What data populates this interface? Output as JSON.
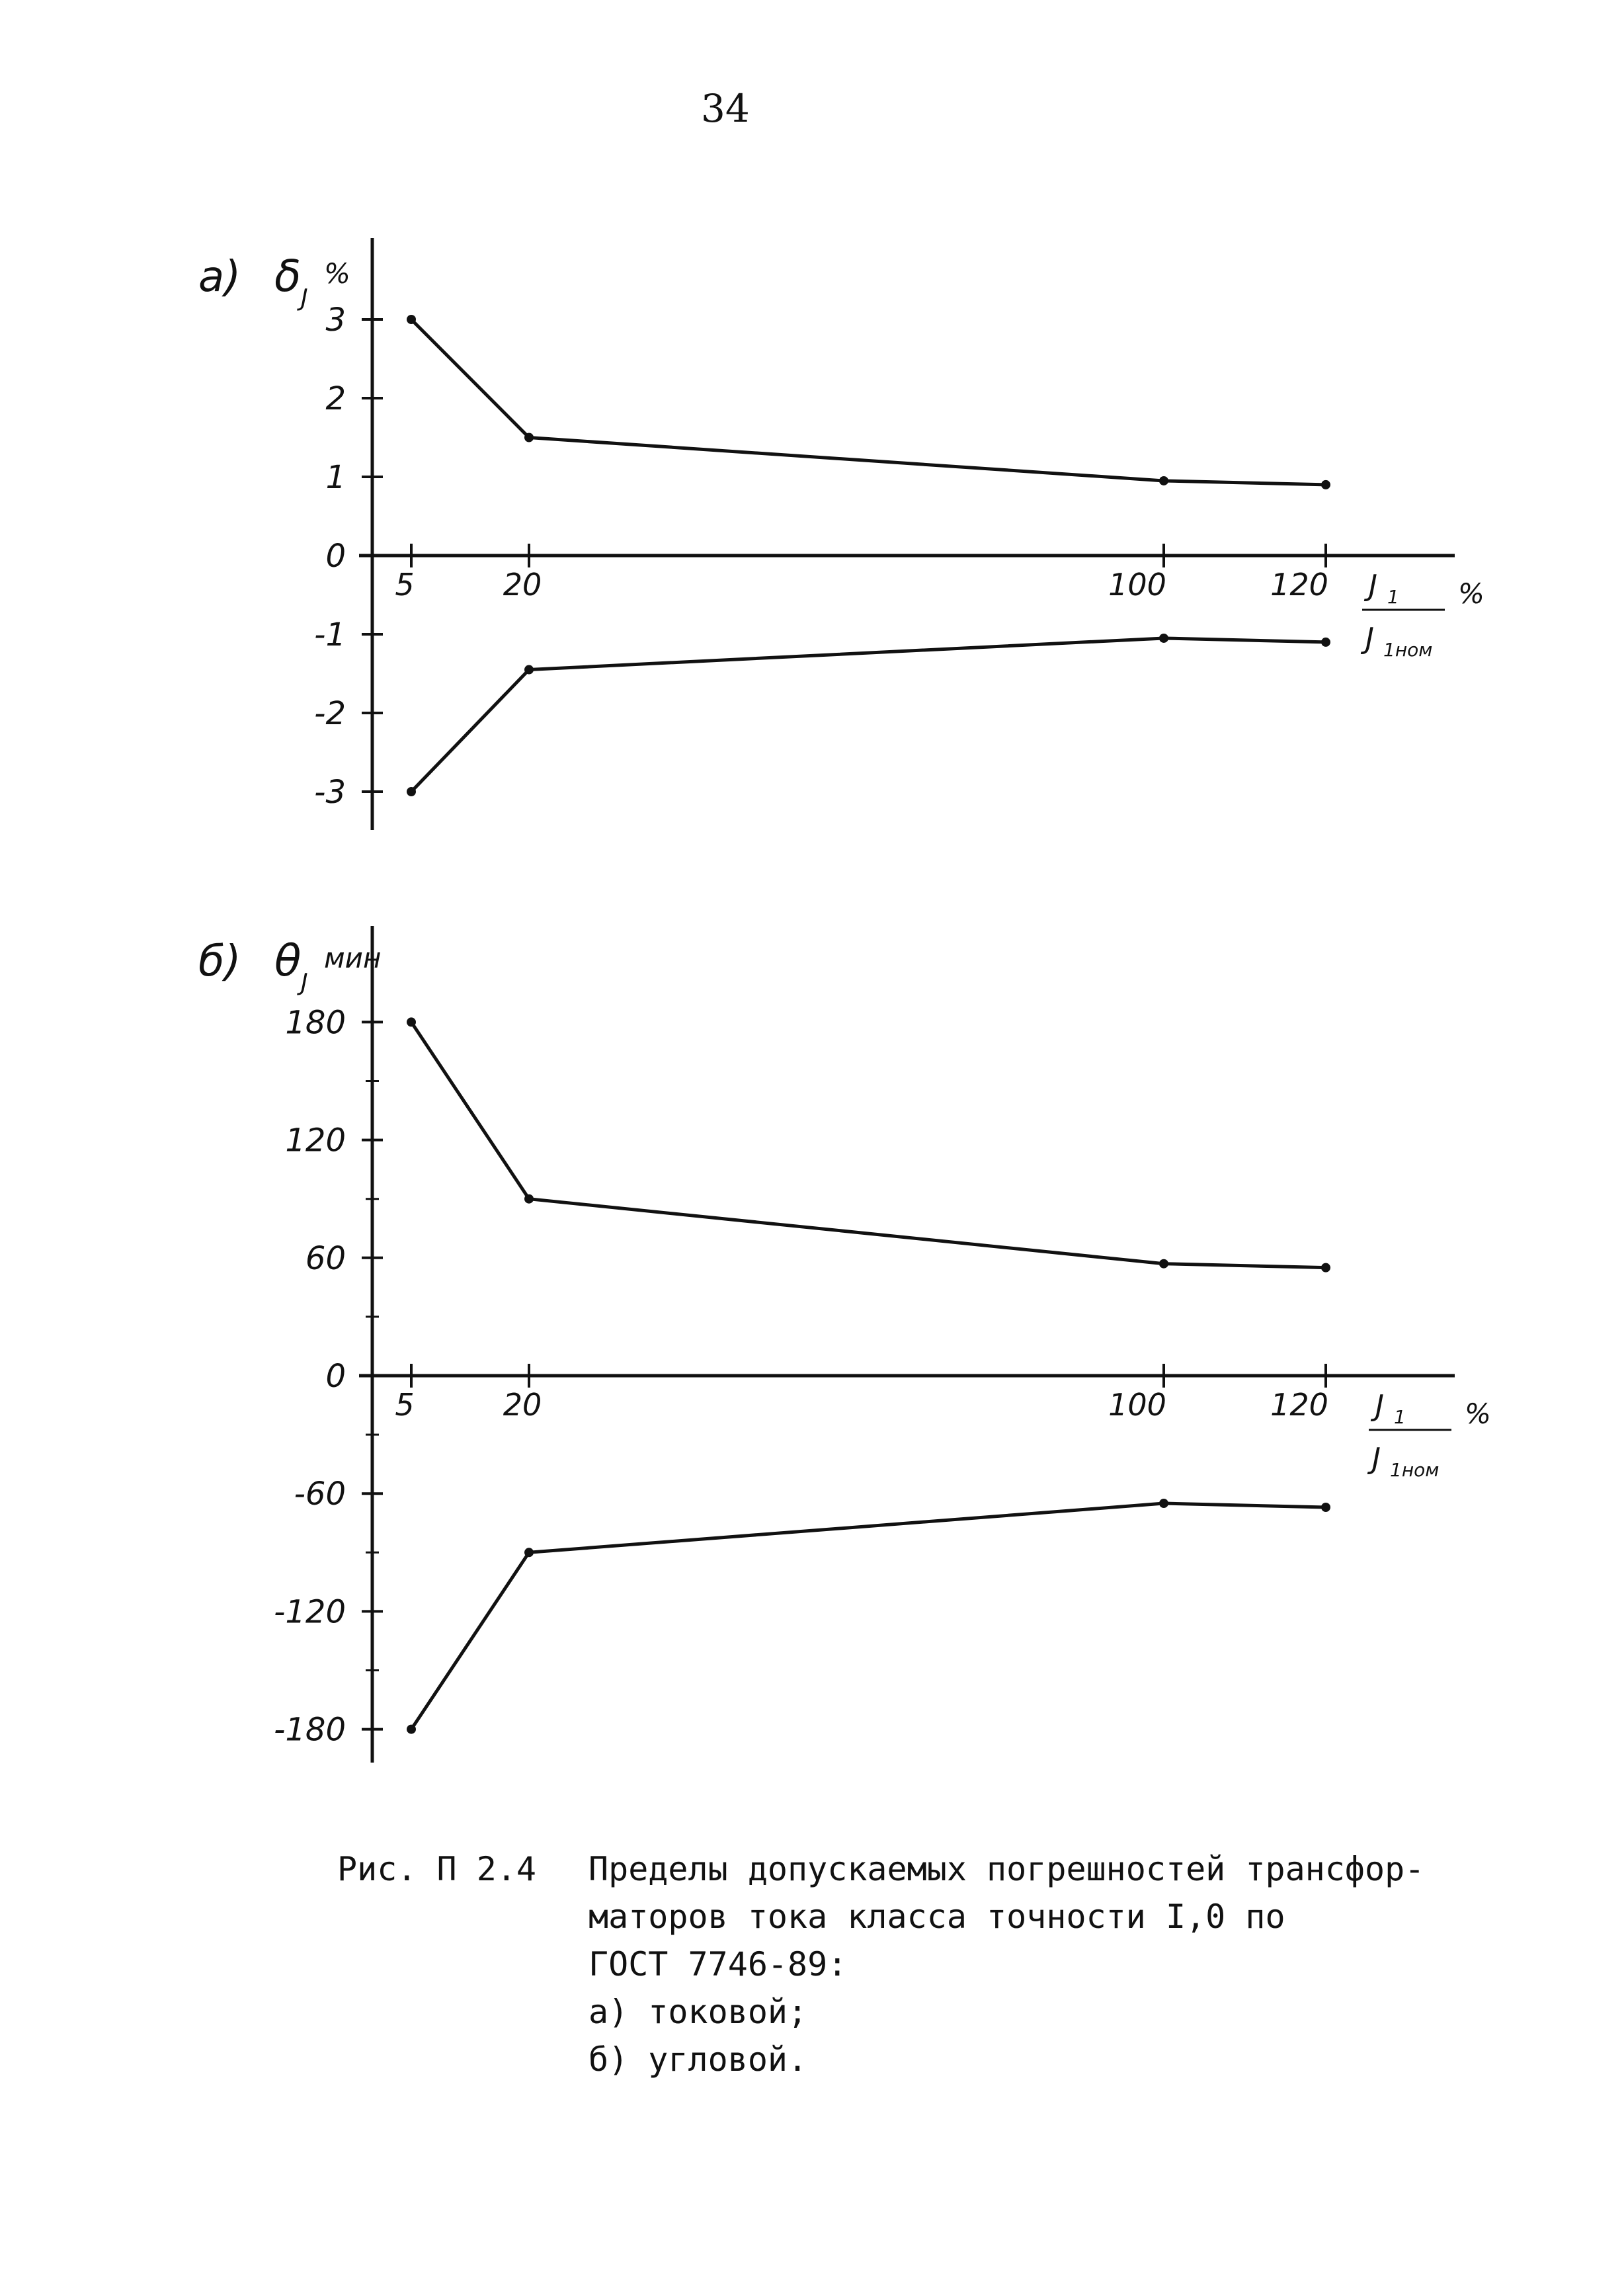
{
  "page": {
    "number": "34"
  },
  "chart_data": [
    {
      "type": "line",
      "panel_label": "а)",
      "y_axis_label": "δ",
      "y_axis_subscript": "J",
      "y_axis_unit": "%",
      "x_axis_label_num": "J",
      "x_axis_label_num_sub": "1",
      "x_axis_label_den": "J",
      "x_axis_label_den_sub": "1ном",
      "x_axis_unit": "%",
      "x": [
        5,
        20,
        100,
        120
      ],
      "x_tick_labels": [
        "5",
        "20",
        "100",
        "120"
      ],
      "y_ticks": [
        3,
        2,
        1,
        0,
        -1,
        -2,
        -3
      ],
      "y_tick_labels": [
        "3",
        "2",
        "1",
        "0",
        "-1",
        "-2",
        "-3"
      ],
      "ylim": [
        -3.7,
        4.0
      ],
      "series": [
        {
          "values": [
            3.0,
            1.5,
            0.95,
            0.9
          ]
        },
        {
          "values": [
            -3.0,
            -1.45,
            -1.05,
            -1.1
          ]
        }
      ]
    },
    {
      "type": "line",
      "panel_label": "б)",
      "y_axis_label": "θ",
      "y_axis_subscript": "J",
      "y_axis_unit": "мин",
      "x_axis_label_num": "J",
      "x_axis_label_num_sub": "1",
      "x_axis_label_den": "J",
      "x_axis_label_den_sub": "1ном",
      "x_axis_unit": "%",
      "x": [
        5,
        20,
        100,
        120
      ],
      "x_tick_labels": [
        "5",
        "20",
        "100",
        "120"
      ],
      "y_ticks": [
        180,
        120,
        60,
        0,
        -60,
        -120,
        -180
      ],
      "y_tick_labels": [
        "180",
        "120",
        "60",
        "0",
        "-60",
        "-120",
        "-180"
      ],
      "ylim": [
        -195,
        225
      ],
      "series": [
        {
          "values": [
            180,
            90,
            57,
            55
          ]
        },
        {
          "values": [
            -180,
            -90,
            -65,
            -67
          ]
        }
      ]
    }
  ],
  "caption": {
    "label": "Рис. П 2.4",
    "lines": [
      "Пределы допускаемых погрешностей трансфор-",
      "маторов тока класса точности I,0 по",
      "ГОСТ 7746-89:",
      "а) токовой;",
      "б) угловой."
    ]
  }
}
